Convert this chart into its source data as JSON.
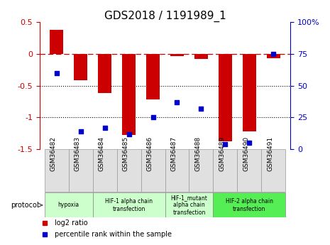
{
  "title": "GDS2018 / 1191989_1",
  "samples": [
    "GSM36482",
    "GSM36483",
    "GSM36484",
    "GSM36485",
    "GSM36486",
    "GSM36487",
    "GSM36488",
    "GSM36489",
    "GSM36490",
    "GSM36491"
  ],
  "log2_ratio": [
    0.38,
    -0.42,
    -0.62,
    -1.28,
    -0.72,
    -0.04,
    -0.08,
    -1.38,
    -1.22,
    -0.07
  ],
  "percentile_rank": [
    60,
    14,
    17,
    12,
    25,
    37,
    32,
    4,
    5,
    75
  ],
  "ylim_left": [
    -1.5,
    0.5
  ],
  "ylim_right": [
    0,
    100
  ],
  "bar_color": "#cc0000",
  "scatter_color": "#0000cc",
  "dashed_color": "#cc0000",
  "protocol_groups": [
    {
      "label": "hypoxia",
      "start": 0,
      "end": 1,
      "color": "#ccffcc"
    },
    {
      "label": "HIF-1 alpha chain\ntransfection",
      "start": 2,
      "end": 4,
      "color": "#ccffcc"
    },
    {
      "label": "HIF-1_mutant\nalpha chain\ntransfection",
      "start": 5,
      "end": 6,
      "color": "#ccffcc"
    },
    {
      "label": "HIF-2 alpha chain\ntransfection",
      "start": 7,
      "end": 9,
      "color": "#55ee55"
    }
  ],
  "legend_bar_label": "log2 ratio",
  "legend_scatter_label": "percentile rank within the sample",
  "left_axis_color": "#cc0000",
  "right_axis_color": "#0000cc",
  "bar_width": 0.55,
  "title_fontsize": 11,
  "tick_fontsize": 7,
  "label_fontsize": 7,
  "protocol_label": "protocol"
}
